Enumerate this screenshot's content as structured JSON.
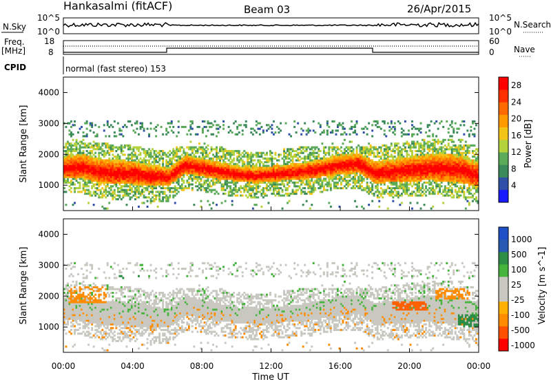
{
  "header": {
    "station": "Hankasalmi (fitACF)",
    "beam": "Beam 03",
    "date": "26/Apr/2015"
  },
  "top_panels": {
    "nsky_label": "N.Sky",
    "nsky_ticks": [
      "10^5",
      "10^0"
    ],
    "nsearch_label": "N.Search",
    "nsearch_ticks": [
      "10^5",
      "10^0"
    ],
    "freq_label": "Freq.",
    "freq_unit": "[MHz]",
    "freq_ticks": [
      18,
      8
    ],
    "nave_label": "Nave",
    "nave_ticks": [
      60,
      0
    ],
    "cpid_label": "CPID",
    "cpid_text": "normal (fast stereo) 153"
  },
  "colors": {
    "power_scale": [
      "#1a1aff",
      "#3050a8",
      "#3a8a5a",
      "#5aaa5a",
      "#b4d23c",
      "#f2c418",
      "#ff9900",
      "#ff6a00",
      "#ff3000",
      "#ff0000"
    ],
    "velocity_scale": [
      "#ff0000",
      "#ff5000",
      "#ff8c00",
      "#ffb000",
      "#c8c8c0",
      "#c8c8c0",
      "#46b43c",
      "#2d8c46",
      "#285ab4",
      "#2050c8"
    ],
    "ground_scatter": "#c8c8c0"
  },
  "chart_data": [
    {
      "type": "heatmap",
      "name": "Power panel",
      "xlabel": "Time UT",
      "ylabel": "Slant Range [km]",
      "xlim": [
        0,
        24
      ],
      "ylim": [
        180,
        4500
      ],
      "x_ticks": [
        "00:00",
        "04:00",
        "08:00",
        "12:00",
        "16:00",
        "20:00",
        "00:00"
      ],
      "y_ticks": [
        1000,
        2000,
        3000,
        4000
      ],
      "colorbar_label": "Power [dB]",
      "colorbar_ticks": [
        4,
        8,
        12,
        16,
        20,
        24,
        28
      ],
      "colorbar_range": [
        0,
        30
      ],
      "bands": [
        {
          "t": [
            0,
            1,
            2,
            3,
            4,
            5,
            6,
            7,
            8,
            9,
            10,
            11,
            12,
            13,
            14,
            15,
            16,
            17,
            18,
            19,
            20,
            21,
            22,
            23,
            24
          ],
          "center_km": [
            1550,
            1600,
            1450,
            1400,
            1380,
            1300,
            1250,
            1650,
            1550,
            1450,
            1350,
            1300,
            1350,
            1400,
            1450,
            1550,
            1650,
            1700,
            1400,
            1450,
            1500,
            1550,
            1550,
            1500,
            1300
          ],
          "half_width_km": [
            350,
            400,
            400,
            400,
            380,
            350,
            300,
            300,
            300,
            280,
            250,
            250,
            250,
            260,
            280,
            300,
            320,
            320,
            350,
            380,
            400,
            420,
            450,
            450,
            400
          ],
          "peak_db": 29
        }
      ]
    },
    {
      "type": "heatmap",
      "name": "Velocity panel",
      "xlabel": "Time UT",
      "ylabel": "Slant Range [km]",
      "xlim": [
        0,
        24
      ],
      "ylim": [
        180,
        4500
      ],
      "x_ticks": [
        "00:00",
        "04:00",
        "08:00",
        "12:00",
        "16:00",
        "20:00",
        "00:00"
      ],
      "y_ticks": [
        1000,
        2000,
        3000,
        4000
      ],
      "colorbar_label": "Velocity [m s^-1]",
      "colorbar_ticks": [
        "1000",
        "500",
        "100",
        "25",
        "-25",
        "-100",
        "-500",
        "-1000"
      ],
      "features": [
        {
          "t0": 0.3,
          "t1": 2.5,
          "r0": 1750,
          "r1": 2300,
          "velocity": -150
        },
        {
          "t0": 3.0,
          "t1": 4.5,
          "r0": 2300,
          "r1": 2700,
          "velocity": 150
        },
        {
          "t0": 19.0,
          "t1": 21.0,
          "r0": 1500,
          "r1": 1800,
          "velocity": -300
        },
        {
          "t0": 21.5,
          "t1": 23.5,
          "r0": 1900,
          "r1": 2200,
          "velocity": -200
        },
        {
          "t0": 22.8,
          "t1": 24,
          "r0": 1000,
          "r1": 1400,
          "velocity": 120
        }
      ]
    }
  ]
}
